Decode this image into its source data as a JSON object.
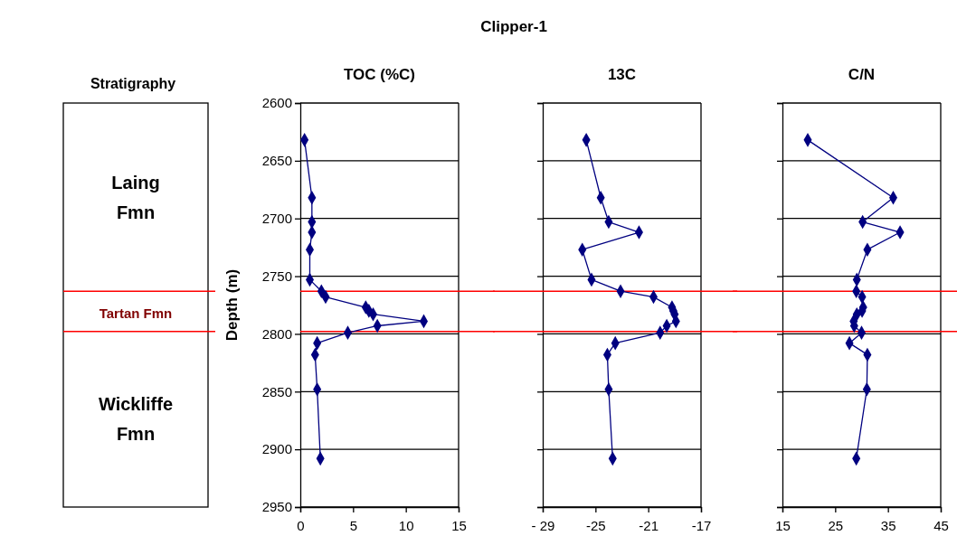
{
  "chart_data": [
    {
      "type": "other",
      "title": "Stratigraphy",
      "annotations": [
        "Clipper-1",
        "Laing Fmn",
        "Tartan Fmn",
        "Wickliffe Fmn"
      ]
    },
    {
      "type": "line",
      "title": "TOC (%C)",
      "ylabel": "Depth (m)",
      "orientation": "horizontal",
      "marker": "diamond",
      "grid": "y",
      "x": [
        2632,
        2682,
        2703,
        2712,
        2727,
        2753,
        2763,
        2768,
        2777,
        2780,
        2783,
        2789,
        2793,
        2799,
        2808,
        2818,
        2848,
        2908
      ],
      "series": [
        {
          "color": "#000080",
          "values": [
            0.4,
            1.1,
            1.1,
            1.1,
            0.9,
            0.9,
            2.0,
            2.4,
            6.2,
            6.5,
            6.9,
            11.7,
            7.3,
            4.5,
            1.6,
            1.4,
            1.6,
            1.9
          ]
        }
      ],
      "xlim": [
        0,
        15
      ],
      "xticks": [
        0,
        5,
        10,
        15
      ],
      "ylim": [
        2950,
        2600
      ],
      "yticks": [
        2600,
        2650,
        2700,
        2750,
        2800,
        2850,
        2900,
        2950
      ],
      "ref_lines": [
        {
          "axis": "y",
          "value": 2763,
          "color": "#ff0000"
        },
        {
          "axis": "y",
          "value": 2798,
          "color": "#ff0000"
        }
      ]
    },
    {
      "type": "line",
      "title": "13C",
      "orientation": "horizontal",
      "marker": "diamond",
      "grid": "y",
      "tick_labels": "x",
      "x": [
        2632,
        2682,
        2703,
        2712,
        2727,
        2753,
        2763,
        2768,
        2777,
        2780,
        2783,
        2789,
        2793,
        2799,
        2808,
        2818,
        2848,
        2908
      ],
      "series": [
        {
          "color": "#000080",
          "values": [
            -25.7,
            -24.6,
            -24.0,
            -21.7,
            -26.0,
            -25.3,
            -23.1,
            -20.6,
            -19.2,
            -19.1,
            -19.0,
            -18.9,
            -19.6,
            -20.1,
            -23.5,
            -24.1,
            -24.0,
            -23.7
          ]
        }
      ],
      "xlim": [
        -29,
        -17
      ],
      "xticks": [
        {
          "value": -29,
          "label": "- 29"
        },
        -25,
        -21,
        -17
      ],
      "ylim": [
        2950,
        2600
      ],
      "yticks": [
        2600,
        2650,
        2700,
        2750,
        2800,
        2850,
        2900,
        2950
      ],
      "ref_lines": [
        {
          "axis": "y",
          "value": 2763,
          "color": "#ff0000"
        },
        {
          "axis": "y",
          "value": 2798,
          "color": "#ff0000"
        }
      ]
    },
    {
      "type": "line",
      "title": "C/N",
      "orientation": "horizontal",
      "marker": "diamond",
      "grid": "y",
      "tick_labels": "x",
      "x": [
        2632,
        2682,
        2703,
        2712,
        2727,
        2753,
        2763,
        2768,
        2777,
        2780,
        2783,
        2789,
        2793,
        2799,
        2808,
        2818,
        2848,
        2908
      ],
      "series": [
        {
          "color": "#000080",
          "values": [
            19.8,
            36.0,
            30.2,
            37.3,
            31.1,
            29.1,
            29.0,
            30.1,
            30.3,
            30.1,
            29.1,
            28.5,
            28.6,
            30.0,
            27.7,
            31.1,
            31.0,
            29.0
          ]
        }
      ],
      "xlim": [
        15,
        45
      ],
      "xticks": [
        15,
        25,
        35,
        45
      ],
      "ylim": [
        2950,
        2600
      ],
      "yticks": [
        2600,
        2650,
        2700,
        2750,
        2800,
        2850,
        2900,
        2950
      ],
      "ref_lines": [
        {
          "axis": "y",
          "value": 2763,
          "color": "#ff0000"
        },
        {
          "axis": "y",
          "value": 2798,
          "color": "#ff0000"
        }
      ]
    }
  ]
}
